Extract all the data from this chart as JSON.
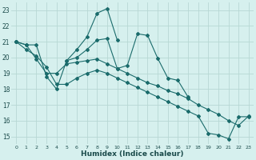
{
  "xlabel": "Humidex (Indice chaleur)",
  "bg_color": "#d6f0ee",
  "grid_color": "#b8d8d4",
  "line_color": "#1a6b6b",
  "xlim": [
    -0.5,
    23.5
  ],
  "ylim": [
    14.5,
    23.5
  ],
  "xticks": [
    0,
    1,
    2,
    3,
    4,
    5,
    6,
    7,
    8,
    9,
    10,
    11,
    12,
    13,
    14,
    15,
    16,
    17,
    18,
    19,
    20,
    21,
    22,
    23
  ],
  "yticks": [
    15,
    16,
    17,
    18,
    19,
    20,
    21,
    22,
    23
  ],
  "series": [
    [
      21.0,
      20.8,
      20.8,
      18.8,
      18.0,
      19.8,
      20.5,
      21.3,
      22.8,
      23.1,
      21.1,
      null,
      null,
      null,
      null,
      null,
      null,
      null,
      null,
      null,
      null,
      null,
      null,
      null
    ],
    [
      null,
      null,
      null,
      null,
      null,
      19.8,
      20.0,
      20.5,
      21.1,
      21.2,
      19.3,
      19.5,
      21.5,
      21.4,
      19.95,
      18.7,
      18.55,
      17.5,
      null,
      null,
      null,
      null,
      null,
      null
    ],
    [
      21.0,
      20.8,
      19.9,
      19.0,
      19.0,
      19.6,
      19.7,
      19.8,
      19.9,
      19.6,
      19.3,
      19.0,
      18.7,
      18.4,
      18.2,
      17.9,
      17.7,
      17.4,
      17.0,
      16.7,
      16.4,
      16.0,
      15.7,
      16.3
    ],
    [
      21.0,
      20.5,
      20.1,
      19.4,
      18.3,
      18.3,
      18.7,
      19.0,
      19.2,
      19.0,
      18.7,
      18.4,
      18.1,
      17.8,
      17.5,
      17.2,
      16.9,
      16.6,
      16.3,
      15.2,
      15.1,
      14.85,
      16.25,
      16.25
    ]
  ]
}
